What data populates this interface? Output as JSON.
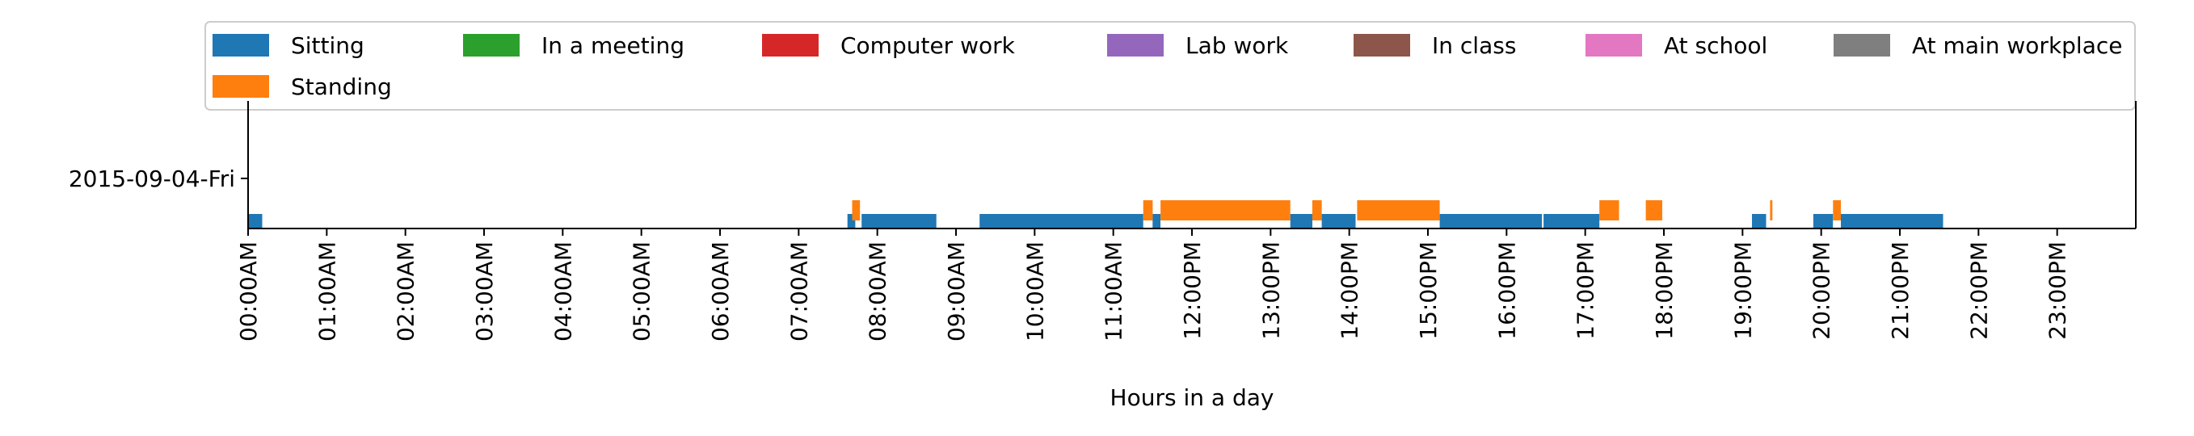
{
  "chart_data": {
    "type": "timeline",
    "title": "",
    "xlabel": "Hours in a day",
    "ylabel": "",
    "xlim": [
      0,
      24
    ],
    "y_categories": [
      "2015-09-04-Fri"
    ],
    "x_ticks": [
      {
        "hour": 0,
        "label": "00:00AM"
      },
      {
        "hour": 1,
        "label": "01:00AM"
      },
      {
        "hour": 2,
        "label": "02:00AM"
      },
      {
        "hour": 3,
        "label": "03:00AM"
      },
      {
        "hour": 4,
        "label": "04:00AM"
      },
      {
        "hour": 5,
        "label": "05:00AM"
      },
      {
        "hour": 6,
        "label": "06:00AM"
      },
      {
        "hour": 7,
        "label": "07:00AM"
      },
      {
        "hour": 8,
        "label": "08:00AM"
      },
      {
        "hour": 9,
        "label": "09:00AM"
      },
      {
        "hour": 10,
        "label": "10:00AM"
      },
      {
        "hour": 11,
        "label": "11:00AM"
      },
      {
        "hour": 12,
        "label": "12:00PM"
      },
      {
        "hour": 13,
        "label": "13:00PM"
      },
      {
        "hour": 14,
        "label": "14:00PM"
      },
      {
        "hour": 15,
        "label": "15:00PM"
      },
      {
        "hour": 16,
        "label": "16:00PM"
      },
      {
        "hour": 17,
        "label": "17:00PM"
      },
      {
        "hour": 18,
        "label": "18:00PM"
      },
      {
        "hour": 19,
        "label": "19:00PM"
      },
      {
        "hour": 20,
        "label": "20:00PM"
      },
      {
        "hour": 21,
        "label": "21:00PM"
      },
      {
        "hour": 22,
        "label": "22:00PM"
      },
      {
        "hour": 23,
        "label": "23:00PM"
      }
    ],
    "legend": {
      "placement": "top",
      "entries": [
        {
          "name": "Sitting",
          "color": "#1f77b4"
        },
        {
          "name": "In a meeting",
          "color": "#2ca02c"
        },
        {
          "name": "Computer work",
          "color": "#d62728"
        },
        {
          "name": "Lab work",
          "color": "#9467bd"
        },
        {
          "name": "In class",
          "color": "#8c564b"
        },
        {
          "name": "At school",
          "color": "#e377c2"
        },
        {
          "name": "At main workplace",
          "color": "#7f7f7f"
        },
        {
          "name": "Standing",
          "color": "#ff7f0e"
        }
      ]
    },
    "series": [
      {
        "name": "Sitting",
        "color": "#1f77b4",
        "row": "2015-09-04-Fri",
        "intervals": [
          [
            0.0,
            0.18
          ],
          [
            7.62,
            7.72
          ],
          [
            7.8,
            8.75
          ],
          [
            9.3,
            11.38
          ],
          [
            11.5,
            11.6
          ],
          [
            13.25,
            13.53
          ],
          [
            13.65,
            14.08
          ],
          [
            15.15,
            16.45
          ],
          [
            16.47,
            17.18
          ],
          [
            19.12,
            19.3
          ],
          [
            19.9,
            20.15
          ],
          [
            20.25,
            21.55
          ]
        ]
      },
      {
        "name": "Standing",
        "color": "#ff7f0e",
        "row": "2015-09-04-Fri",
        "intervals": [
          [
            7.68,
            7.78
          ],
          [
            11.38,
            11.5
          ],
          [
            11.6,
            13.25
          ],
          [
            13.53,
            13.65
          ],
          [
            14.1,
            15.15
          ],
          [
            17.18,
            17.43
          ],
          [
            17.77,
            17.98
          ],
          [
            19.35,
            19.38
          ],
          [
            20.15,
            20.25
          ]
        ]
      }
    ]
  }
}
